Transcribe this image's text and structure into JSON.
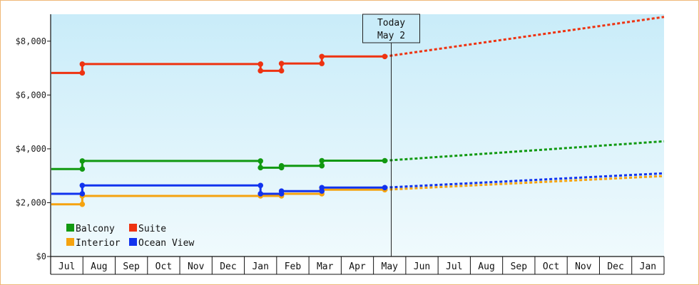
{
  "chart_data": {
    "type": "line",
    "title": "",
    "xlabel": "",
    "ylabel": "",
    "ylim": [
      0,
      9000
    ],
    "y_ticks": [
      "$0",
      "$2,000",
      "$4,000",
      "$6,000",
      "$8,000"
    ],
    "y_tick_values": [
      0,
      2000,
      4000,
      6000,
      8000
    ],
    "x_ticks": [
      "Jul",
      "Aug",
      "Sep",
      "Oct",
      "Nov",
      "Dec",
      "Jan",
      "Feb",
      "Mar",
      "Apr",
      "May",
      "Jun",
      "Jul",
      "Aug",
      "Sep",
      "Oct",
      "Nov",
      "Dec",
      "Jan"
    ],
    "x_range": [
      0,
      19
    ],
    "grid": false,
    "legend_position": "bottom-left",
    "today_marker": {
      "line1": "Today",
      "line2": "May 2",
      "x": 10.55
    },
    "series": [
      {
        "name": "Balcony",
        "color": "#119911",
        "steps": [
          [
            0.02,
            3250
          ],
          [
            0.98,
            3250
          ],
          [
            0.98,
            3550
          ],
          [
            6.5,
            3550
          ],
          [
            6.5,
            3300
          ],
          [
            7.15,
            3300
          ],
          [
            7.15,
            3370
          ],
          [
            8.4,
            3370
          ],
          [
            8.4,
            3380
          ],
          [
            8.4,
            3560
          ],
          [
            10.35,
            3560
          ]
        ],
        "forecast": [
          [
            10.35,
            3560
          ],
          [
            19.0,
            4280
          ]
        ]
      },
      {
        "name": "Suite",
        "color": "#ee3311",
        "steps": [
          [
            0.02,
            6820
          ],
          [
            0.98,
            6820
          ],
          [
            0.98,
            7150
          ],
          [
            6.5,
            7150
          ],
          [
            6.5,
            6900
          ],
          [
            7.15,
            6900
          ],
          [
            7.15,
            7170
          ],
          [
            8.4,
            7170
          ],
          [
            8.4,
            7430
          ],
          [
            10.35,
            7430
          ]
        ],
        "forecast": [
          [
            10.35,
            7430
          ],
          [
            19.0,
            8900
          ]
        ]
      },
      {
        "name": "Interior",
        "color": "#f5a30f",
        "steps": [
          [
            0.02,
            1940
          ],
          [
            0.98,
            1940
          ],
          [
            0.98,
            2250
          ],
          [
            6.5,
            2250
          ],
          [
            6.5,
            2250
          ],
          [
            7.15,
            2250
          ],
          [
            7.15,
            2330
          ],
          [
            8.4,
            2330
          ],
          [
            8.4,
            2480
          ],
          [
            10.35,
            2480
          ]
        ],
        "forecast": [
          [
            10.35,
            2480
          ],
          [
            19.0,
            2990
          ]
        ]
      },
      {
        "name": "Ocean View",
        "color": "#1133ee",
        "steps": [
          [
            0.02,
            2330
          ],
          [
            0.98,
            2330
          ],
          [
            0.98,
            2640
          ],
          [
            6.5,
            2640
          ],
          [
            6.5,
            2330
          ],
          [
            7.15,
            2330
          ],
          [
            7.15,
            2430
          ],
          [
            8.4,
            2430
          ],
          [
            8.4,
            2560
          ],
          [
            10.35,
            2560
          ]
        ],
        "forecast": [
          [
            10.35,
            2560
          ],
          [
            19.0,
            3090
          ]
        ]
      }
    ]
  }
}
